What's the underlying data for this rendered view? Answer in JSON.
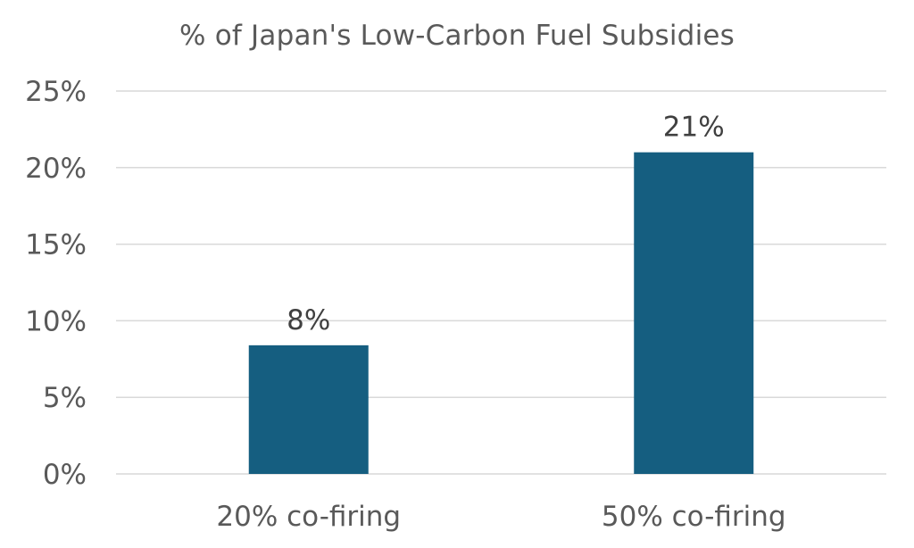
{
  "chart_data": {
    "type": "bar",
    "title": "% of Japan's Low-Carbon Fuel Subsidies",
    "categories": [
      "20% co-firing",
      "50% co-firing"
    ],
    "values": [
      8.4,
      21.0
    ],
    "data_labels": [
      "8%",
      "21%"
    ],
    "ylim": [
      0,
      25
    ],
    "yticks": [
      0,
      5,
      10,
      15,
      20,
      25
    ],
    "ytick_labels": [
      "0%",
      "5%",
      "10%",
      "15%",
      "20%",
      "25%"
    ],
    "grid": true,
    "legend": "none",
    "bar_color": "#155e80"
  }
}
